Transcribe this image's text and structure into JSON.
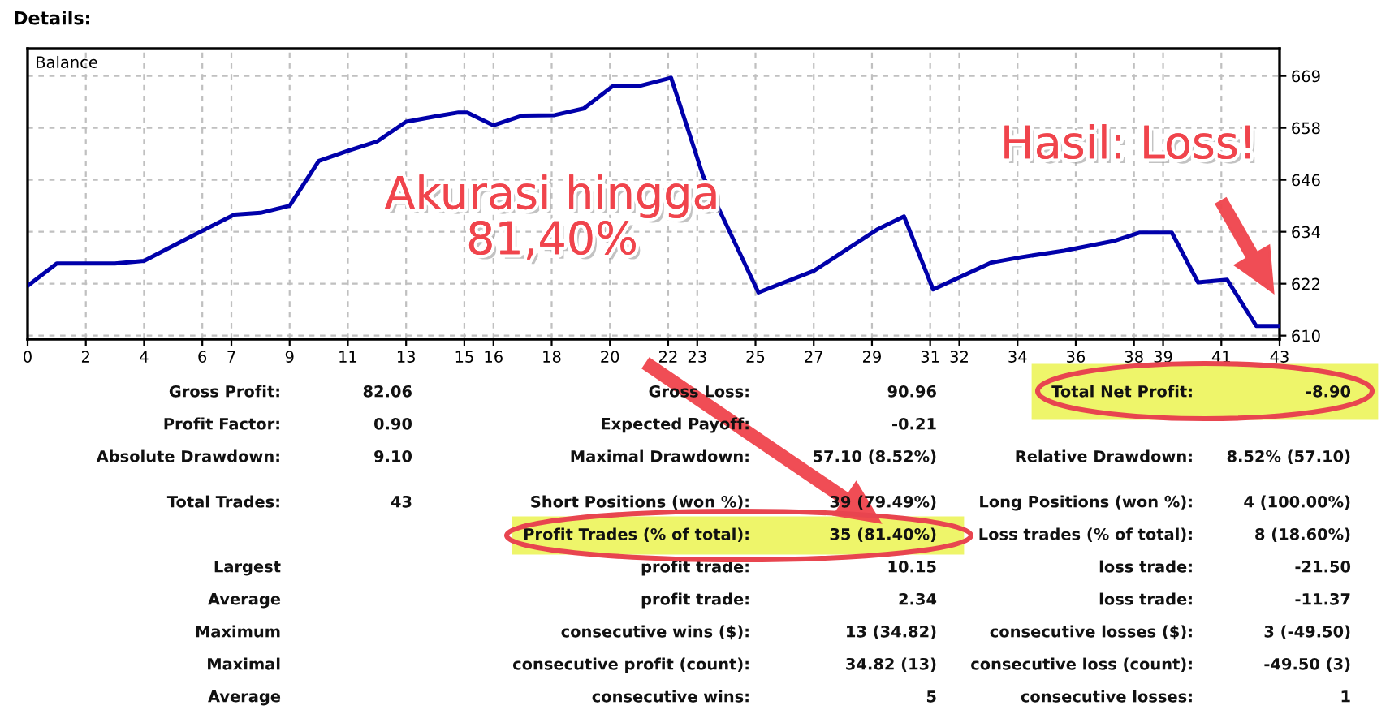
{
  "chart_data": [
    {
      "type": "line",
      "title": "Details:",
      "ylabel": "Balance",
      "xlim": [
        0,
        43
      ],
      "ylim": [
        609.6,
        675.6
      ],
      "xticks": [
        0,
        2,
        4,
        6,
        7,
        9,
        11,
        13,
        15,
        16,
        18,
        20,
        22,
        23,
        25,
        27,
        29,
        31,
        32,
        34,
        36,
        38,
        39,
        41,
        43
      ],
      "yticks": [
        {
          "value": 610.4,
          "label": "610"
        },
        {
          "value": 622.2,
          "label": "622"
        },
        {
          "value": 634,
          "label": "634"
        },
        {
          "value": 645.8,
          "label": "646"
        },
        {
          "value": 657.6,
          "label": "658"
        },
        {
          "value": 669.4,
          "label": "669"
        }
      ],
      "grid": true,
      "line_style": "solid",
      "series": [
        {
          "color": "#0000aa",
          "x": [
            0,
            1,
            3,
            4,
            5.4,
            7.1,
            8,
            9,
            10,
            11,
            12,
            13,
            14,
            14.8,
            15.1,
            16,
            17,
            18.1,
            19.1,
            20.1,
            21,
            22.1,
            23.2,
            24,
            25.1,
            27,
            29.2,
            30.1,
            31.1,
            33.1,
            34.1,
            35.6,
            37.3,
            38.2,
            39.3,
            40.2,
            41.2,
            42.2,
            43
          ],
          "values": [
            621.7,
            626.8,
            626.8,
            627.4,
            632.2,
            637.9,
            638.3,
            639.9,
            650.1,
            652.4,
            654.5,
            659,
            660.2,
            661.1,
            661.1,
            658.2,
            660.4,
            660.5,
            662,
            667.1,
            667.1,
            669,
            646.7,
            635.6,
            620.2,
            625.1,
            634.6,
            637.5,
            620.9,
            627,
            628.2,
            629.7,
            631.9,
            633.8,
            633.8,
            622.5,
            623.1,
            612.6,
            612.6
          ]
        }
      ],
      "annotations": [
        "Akurasi hingga\n81,40%",
        "Hasil: Loss!"
      ]
    },
    {
      "type": "other",
      "annotations": [
        "Gross Profit:",
        "82.06",
        "Gross Loss:",
        "90.96",
        "Total Net Profit:",
        "-8.90",
        "Profit Factor:",
        "0.90",
        "Expected Payoff:",
        "-0.21",
        "Absolute Drawdown:",
        "9.10",
        "Maximal Drawdown:",
        "57.10 (8.52%)",
        "Relative Drawdown:",
        "8.52% (57.10)",
        "Total Trades:",
        "43",
        "Short Positions (won %):",
        "39 (79.49%)",
        "Long Positions (won %):",
        "4 (100.00%)",
        "Profit Trades (% of total):",
        "35 (81.40%)",
        "Loss trades (% of total):",
        "8 (18.60%)",
        "Largest",
        "profit trade:",
        "10.15",
        "loss trade:",
        "-21.50",
        "Average",
        "profit trade:",
        "2.34",
        "loss trade:",
        "-11.37",
        "Maximum",
        "consecutive wins ($):",
        "13 (34.82)",
        "consecutive losses ($):",
        "3 (-49.50)",
        "Maximal",
        "consecutive profit (count):",
        "34.82 (13)",
        "consecutive loss (count):",
        "-49.50 (3)",
        "Average",
        "consecutive wins:",
        "5",
        "consecutive losses:",
        "1"
      ]
    }
  ]
}
